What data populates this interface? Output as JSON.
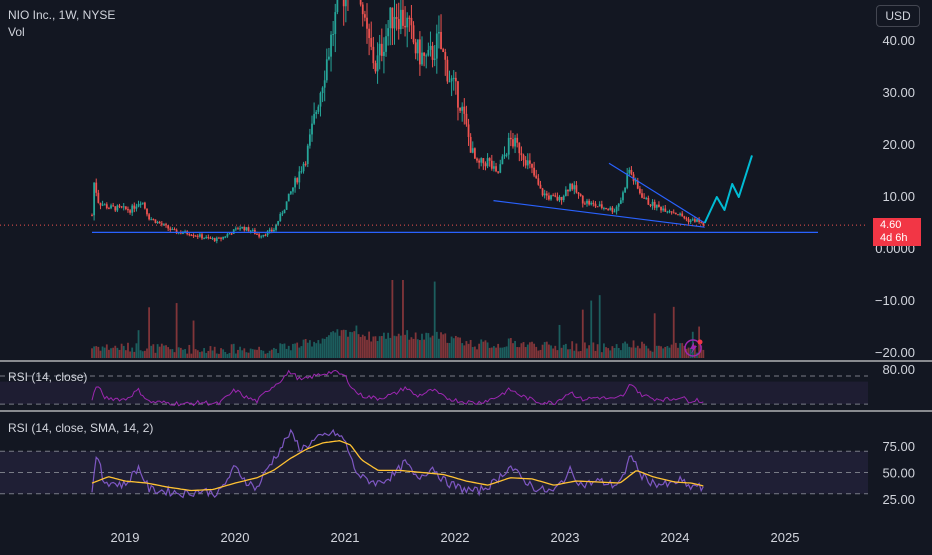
{
  "header": {
    "symbol_line": "NIO Inc., 1W, NYSE",
    "volume_label": "Vol",
    "currency_button": "USD"
  },
  "last_price": {
    "value": "4.60",
    "countdown": "4d 6h",
    "color": "#f23645"
  },
  "indicators": {
    "rsi_small_label": "RSI (14, close)",
    "rsi_large_label": "RSI (14, close, SMA, 14, 2)"
  },
  "colors": {
    "background": "#131722",
    "up": "#26a69a",
    "down": "#ef5350",
    "rsi_line": "#7e57c2",
    "rsi_small_line": "#9c27b0",
    "rsi_sma": "#ffc233",
    "trendline": "#2962ff",
    "projection": "#00bcd4"
  },
  "chart_data": [
    {
      "type": "candlestick",
      "title": "NIO Inc., 1W, NYSE",
      "x_axis": {
        "tick_labels": [
          "2019",
          "2020",
          "2021",
          "2022",
          "2023",
          "2024",
          "2025"
        ]
      },
      "y_axis": {
        "tick_labels": [
          "40.00",
          "30.00",
          "20.00",
          "10.00",
          "0.0000",
          "−10.00",
          "−20.00"
        ],
        "ticks": [
          40,
          30,
          20,
          10,
          0,
          -10,
          -20
        ],
        "range": [
          -21,
          46
        ]
      },
      "price_path": [
        {
          "t": 2018.7,
          "p": 6.5
        },
        {
          "t": 2018.72,
          "p": 13.0
        },
        {
          "t": 2018.76,
          "p": 9.0
        },
        {
          "t": 2018.85,
          "p": 8.0
        },
        {
          "t": 2018.95,
          "p": 7.8
        },
        {
          "t": 2019.05,
          "p": 7.5
        },
        {
          "t": 2019.15,
          "p": 9.5
        },
        {
          "t": 2019.22,
          "p": 6.0
        },
        {
          "t": 2019.35,
          "p": 4.5
        },
        {
          "t": 2019.45,
          "p": 3.3
        },
        {
          "t": 2019.6,
          "p": 3.0
        },
        {
          "t": 2019.75,
          "p": 2.0
        },
        {
          "t": 2019.85,
          "p": 1.8
        },
        {
          "t": 2019.95,
          "p": 3.0
        },
        {
          "t": 2020.05,
          "p": 4.2
        },
        {
          "t": 2020.15,
          "p": 3.5
        },
        {
          "t": 2020.22,
          "p": 2.6
        },
        {
          "t": 2020.35,
          "p": 3.6
        },
        {
          "t": 2020.45,
          "p": 8.0
        },
        {
          "t": 2020.55,
          "p": 13.0
        },
        {
          "t": 2020.65,
          "p": 18.0
        },
        {
          "t": 2020.75,
          "p": 28.0
        },
        {
          "t": 2020.85,
          "p": 38.0
        },
        {
          "t": 2020.92,
          "p": 45.0
        },
        {
          "t": 2021.0,
          "p": 50.0
        },
        {
          "t": 2021.1,
          "p": 58.0
        },
        {
          "t": 2021.18,
          "p": 42.0
        },
        {
          "t": 2021.28,
          "p": 35.0
        },
        {
          "t": 2021.35,
          "p": 40.0
        },
        {
          "t": 2021.45,
          "p": 46.0
        },
        {
          "t": 2021.55,
          "p": 44.0
        },
        {
          "t": 2021.65,
          "p": 38.0
        },
        {
          "t": 2021.75,
          "p": 36.0
        },
        {
          "t": 2021.85,
          "p": 40.0
        },
        {
          "t": 2021.95,
          "p": 33.0
        },
        {
          "t": 2022.05,
          "p": 28.0
        },
        {
          "t": 2022.15,
          "p": 19.0
        },
        {
          "t": 2022.2,
          "p": 16.0
        },
        {
          "t": 2022.3,
          "p": 17.0
        },
        {
          "t": 2022.38,
          "p": 14.0
        },
        {
          "t": 2022.5,
          "p": 21.0
        },
        {
          "t": 2022.6,
          "p": 19.0
        },
        {
          "t": 2022.7,
          "p": 15.0
        },
        {
          "t": 2022.78,
          "p": 11.0
        },
        {
          "t": 2022.85,
          "p": 10.0
        },
        {
          "t": 2022.95,
          "p": 9.5
        },
        {
          "t": 2023.05,
          "p": 12.5
        },
        {
          "t": 2023.15,
          "p": 9.5
        },
        {
          "t": 2023.25,
          "p": 8.5
        },
        {
          "t": 2023.35,
          "p": 8.0
        },
        {
          "t": 2023.45,
          "p": 7.5
        },
        {
          "t": 2023.52,
          "p": 10.0
        },
        {
          "t": 2023.58,
          "p": 15.5
        },
        {
          "t": 2023.66,
          "p": 11.5
        },
        {
          "t": 2023.75,
          "p": 9.0
        },
        {
          "t": 2023.85,
          "p": 8.0
        },
        {
          "t": 2023.95,
          "p": 7.5
        },
        {
          "t": 2024.05,
          "p": 6.5
        },
        {
          "t": 2024.12,
          "p": 5.5
        },
        {
          "t": 2024.2,
          "p": 5.5
        },
        {
          "t": 2024.27,
          "p": 4.6
        }
      ],
      "volume_series": {
        "name": "Vol",
        "note": "relative weekly volume, no axis scale printed"
      },
      "drawings": [
        {
          "name": "horizontal-support",
          "points": [
            [
              2018.7,
              3.2
            ],
            [
              2025.3,
              3.2
            ]
          ]
        },
        {
          "name": "falling-wedge-lower",
          "points": [
            [
              2022.35,
              9.3
            ],
            [
              2024.27,
              4.2
            ]
          ]
        },
        {
          "name": "falling-wedge-upper",
          "points": [
            [
              2023.4,
              16.5
            ],
            [
              2024.27,
              5.0
            ]
          ]
        },
        {
          "name": "price-projection",
          "points": [
            [
              2024.27,
              5.0
            ],
            [
              2024.38,
              10.0
            ],
            [
              2024.45,
              7.5
            ],
            [
              2024.52,
              12.5
            ],
            [
              2024.58,
              10.0
            ],
            [
              2024.7,
              18.0
            ]
          ]
        }
      ],
      "last_value_line": 4.6
    },
    {
      "type": "line",
      "title": "RSI (14, close)",
      "y_axis": {
        "tick_labels": [
          "80.00"
        ],
        "range": [
          25,
          85
        ],
        "bands": [
          70,
          30
        ]
      }
    },
    {
      "type": "line",
      "title": "RSI (14, close, SMA, 14, 2)",
      "y_axis": {
        "tick_labels": [
          "75.00",
          "50.00",
          "25.00"
        ],
        "ticks": [
          75,
          50,
          25
        ],
        "range": [
          20,
          92
        ],
        "bands": [
          70,
          30
        ]
      },
      "rsi_path": [
        {
          "t": 2018.7,
          "v": 35
        },
        {
          "t": 2018.75,
          "v": 68
        },
        {
          "t": 2018.8,
          "v": 42
        },
        {
          "t": 2018.9,
          "v": 40
        },
        {
          "t": 2019.0,
          "v": 38
        },
        {
          "t": 2019.12,
          "v": 55
        },
        {
          "t": 2019.22,
          "v": 34
        },
        {
          "t": 2019.4,
          "v": 32
        },
        {
          "t": 2019.55,
          "v": 30
        },
        {
          "t": 2019.7,
          "v": 33
        },
        {
          "t": 2019.85,
          "v": 30
        },
        {
          "t": 2020.0,
          "v": 55
        },
        {
          "t": 2020.1,
          "v": 42
        },
        {
          "t": 2020.2,
          "v": 35
        },
        {
          "t": 2020.3,
          "v": 55
        },
        {
          "t": 2020.4,
          "v": 70
        },
        {
          "t": 2020.5,
          "v": 88
        },
        {
          "t": 2020.6,
          "v": 72
        },
        {
          "t": 2020.72,
          "v": 80
        },
        {
          "t": 2020.82,
          "v": 85
        },
        {
          "t": 2020.9,
          "v": 88
        },
        {
          "t": 2021.0,
          "v": 80
        },
        {
          "t": 2021.08,
          "v": 55
        },
        {
          "t": 2021.15,
          "v": 45
        },
        {
          "t": 2021.3,
          "v": 40
        },
        {
          "t": 2021.45,
          "v": 48
        },
        {
          "t": 2021.55,
          "v": 60
        },
        {
          "t": 2021.65,
          "v": 44
        },
        {
          "t": 2021.8,
          "v": 55
        },
        {
          "t": 2021.9,
          "v": 42
        },
        {
          "t": 2022.05,
          "v": 35
        },
        {
          "t": 2022.2,
          "v": 32
        },
        {
          "t": 2022.35,
          "v": 40
        },
        {
          "t": 2022.5,
          "v": 56
        },
        {
          "t": 2022.6,
          "v": 45
        },
        {
          "t": 2022.75,
          "v": 34
        },
        {
          "t": 2022.9,
          "v": 32
        },
        {
          "t": 2023.05,
          "v": 52
        },
        {
          "t": 2023.15,
          "v": 38
        },
        {
          "t": 2023.3,
          "v": 42
        },
        {
          "t": 2023.45,
          "v": 38
        },
        {
          "t": 2023.55,
          "v": 48
        },
        {
          "t": 2023.6,
          "v": 69
        },
        {
          "t": 2023.68,
          "v": 48
        },
        {
          "t": 2023.8,
          "v": 40
        },
        {
          "t": 2023.95,
          "v": 38
        },
        {
          "t": 2024.05,
          "v": 43
        },
        {
          "t": 2024.12,
          "v": 36
        },
        {
          "t": 2024.2,
          "v": 38
        },
        {
          "t": 2024.27,
          "v": 32
        }
      ],
      "sma_path": [
        {
          "t": 2018.7,
          "v": 40
        },
        {
          "t": 2018.85,
          "v": 46
        },
        {
          "t": 2019.0,
          "v": 42
        },
        {
          "t": 2019.2,
          "v": 40
        },
        {
          "t": 2019.4,
          "v": 36
        },
        {
          "t": 2019.6,
          "v": 33
        },
        {
          "t": 2019.8,
          "v": 34
        },
        {
          "t": 2020.0,
          "v": 40
        },
        {
          "t": 2020.2,
          "v": 45
        },
        {
          "t": 2020.35,
          "v": 52
        },
        {
          "t": 2020.5,
          "v": 63
        },
        {
          "t": 2020.65,
          "v": 72
        },
        {
          "t": 2020.8,
          "v": 78
        },
        {
          "t": 2020.95,
          "v": 80
        },
        {
          "t": 2021.05,
          "v": 76
        },
        {
          "t": 2021.15,
          "v": 62
        },
        {
          "t": 2021.3,
          "v": 52
        },
        {
          "t": 2021.5,
          "v": 52
        },
        {
          "t": 2021.7,
          "v": 50
        },
        {
          "t": 2021.9,
          "v": 48
        },
        {
          "t": 2022.1,
          "v": 42
        },
        {
          "t": 2022.3,
          "v": 38
        },
        {
          "t": 2022.5,
          "v": 45
        },
        {
          "t": 2022.7,
          "v": 44
        },
        {
          "t": 2022.9,
          "v": 38
        },
        {
          "t": 2023.1,
          "v": 42
        },
        {
          "t": 2023.3,
          "v": 41
        },
        {
          "t": 2023.5,
          "v": 40
        },
        {
          "t": 2023.65,
          "v": 52
        },
        {
          "t": 2023.8,
          "v": 46
        },
        {
          "t": 2024.0,
          "v": 41
        },
        {
          "t": 2024.15,
          "v": 40
        },
        {
          "t": 2024.27,
          "v": 37
        }
      ]
    }
  ]
}
